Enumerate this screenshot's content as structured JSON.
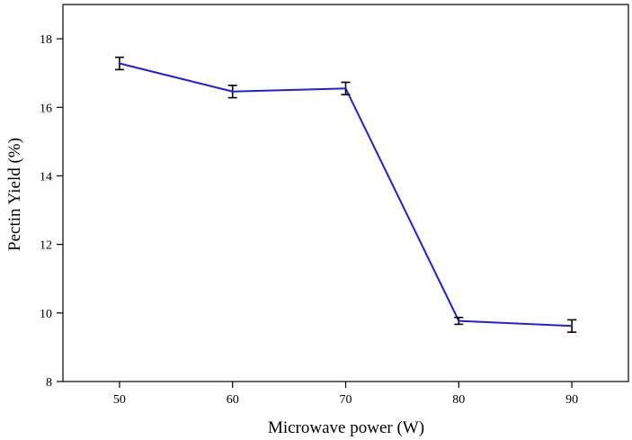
{
  "chart_data": {
    "type": "line",
    "title": "",
    "xlabel": "Microwave power (W)",
    "ylabel": "Pectin Yield (%)",
    "x": [
      50,
      60,
      70,
      80,
      90
    ],
    "xticks": [
      50,
      60,
      70,
      80,
      90
    ],
    "yticks": [
      8,
      10,
      12,
      14,
      16,
      18
    ],
    "xlim": [
      45,
      95
    ],
    "ylim": [
      8,
      19
    ],
    "grid": false,
    "legend": "none",
    "series": [
      {
        "values": [
          17.28,
          16.46,
          16.55,
          9.77,
          9.62
        ],
        "error": [
          0.18,
          0.18,
          0.18,
          0.1,
          0.18
        ],
        "color": "#1f1fe0"
      }
    ],
    "axis_color": "#000000"
  }
}
